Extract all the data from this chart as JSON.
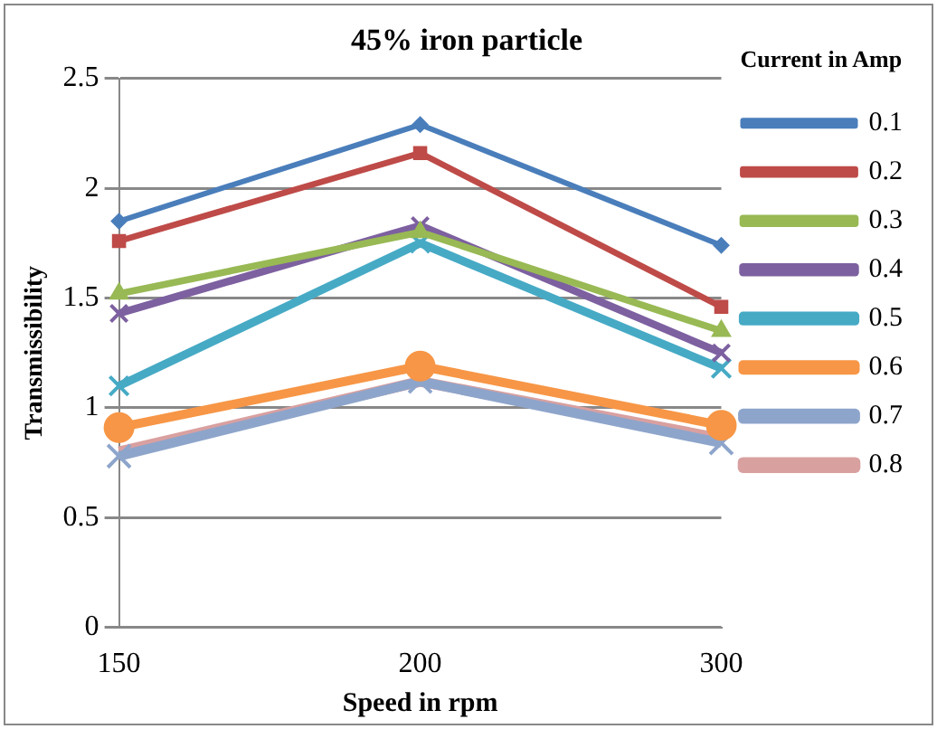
{
  "chart_data": {
    "type": "line",
    "title": "45% iron particle",
    "xlabel": "Speed in rpm",
    "ylabel": "Transmissibility",
    "legend_title": "Current in Amp",
    "categories": [
      "150",
      "200",
      "300"
    ],
    "series": [
      {
        "name": "0.1",
        "color": "#4a7ebb",
        "marker": "diamond",
        "values": [
          1.85,
          2.29,
          1.74
        ]
      },
      {
        "name": "0.2",
        "color": "#be4b48",
        "marker": "square",
        "values": [
          1.76,
          2.16,
          1.46
        ]
      },
      {
        "name": "0.3",
        "color": "#98b954",
        "marker": "triangle",
        "values": [
          1.52,
          1.8,
          1.35
        ]
      },
      {
        "name": "0.4",
        "color": "#7d60a0",
        "marker": "cross",
        "values": [
          1.43,
          1.83,
          1.25
        ]
      },
      {
        "name": "0.5",
        "color": "#46aac5",
        "marker": "cross",
        "values": [
          1.1,
          1.75,
          1.18
        ]
      },
      {
        "name": "0.6",
        "color": "#f79646",
        "marker": "circle",
        "values": [
          0.91,
          1.19,
          0.92
        ]
      },
      {
        "name": "0.7",
        "color": "#8ea5cb",
        "marker": "cross",
        "values": [
          0.78,
          1.12,
          0.84
        ]
      },
      {
        "name": "0.8",
        "color": "#d9a0a0",
        "marker": "none",
        "values": [
          0.8,
          1.12,
          0.86
        ]
      }
    ],
    "ylim": [
      0,
      2.5
    ],
    "yticks": [
      0,
      0.5,
      1,
      1.5,
      2,
      2.5
    ],
    "grid": "y",
    "legend": "right",
    "line_style": "solid"
  }
}
